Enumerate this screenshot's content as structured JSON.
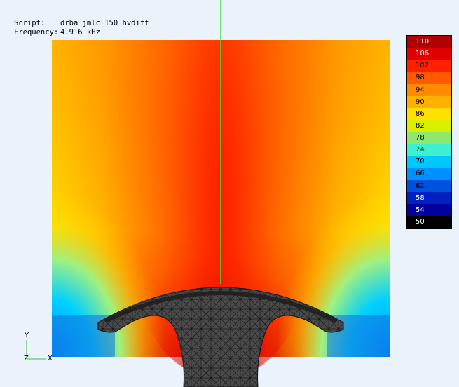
{
  "info": {
    "script_label": "Script:",
    "script_value": "drba_jmlc_150_hvdiff",
    "frequency_label": "Frequency:",
    "frequency_value": "4.916 kHz"
  },
  "legend": {
    "values": [
      "110",
      "106",
      "102",
      "98",
      "94",
      "90",
      "86",
      "82",
      "78",
      "74",
      "70",
      "66",
      "62",
      "58",
      "54",
      "50"
    ],
    "colors": [
      "#b00000",
      "#e00000",
      "#ff2000",
      "#ff5a00",
      "#ff8c00",
      "#ffb000",
      "#ffe000",
      "#d8f000",
      "#8ee870",
      "#3cf0d0",
      "#00c8ff",
      "#0090ff",
      "#0050e0",
      "#0020c0",
      "#0000a0",
      "#000000"
    ]
  },
  "axes": {
    "y": "Y",
    "z": "Z",
    "x": "X"
  }
}
